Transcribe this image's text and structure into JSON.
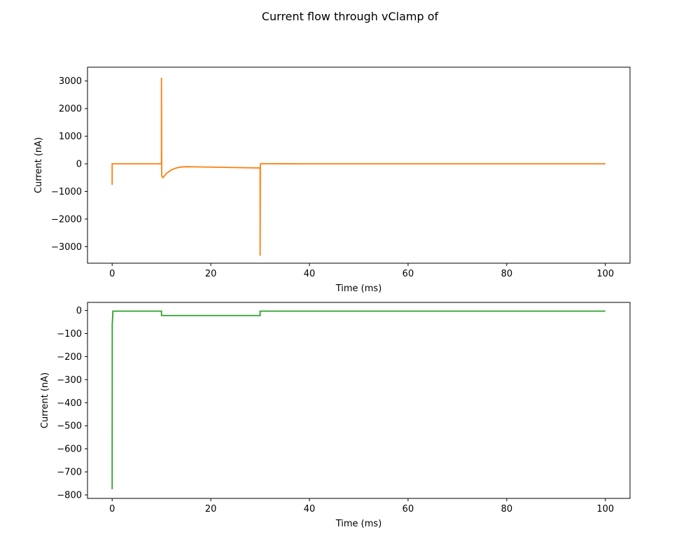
{
  "figure": {
    "title": "Current flow through vClamp of"
  },
  "chart_data": [
    {
      "type": "line",
      "xlabel": "Time (ms)",
      "ylabel": "Current (nA)",
      "xlim": [
        -5,
        105
      ],
      "ylim": [
        -3600,
        3500
      ],
      "xticks": [
        0,
        20,
        40,
        60,
        80,
        100
      ],
      "yticks": [
        -3000,
        -2000,
        -1000,
        0,
        1000,
        2000,
        3000
      ],
      "grid": false,
      "series": [
        {
          "color": "#ff7f0e",
          "x": [
            0,
            0,
            0.1,
            10,
            10,
            10.05,
            10.3,
            11,
            12,
            13,
            14,
            15,
            17,
            20,
            25,
            30,
            30,
            30.05,
            30.3,
            35,
            40,
            60,
            80,
            100
          ],
          "y": [
            -760,
            0,
            0,
            0,
            3120,
            -440,
            -500,
            -350,
            -220,
            -150,
            -115,
            -105,
            -110,
            -120,
            -135,
            -150,
            -3330,
            -10,
            5,
            2,
            0,
            0,
            0,
            0
          ]
        }
      ]
    },
    {
      "type": "line",
      "xlabel": "Time (ms)",
      "ylabel": "Current (nA)",
      "xlim": [
        -5,
        105
      ],
      "ylim": [
        -815,
        35
      ],
      "xticks": [
        0,
        20,
        40,
        60,
        80,
        100
      ],
      "yticks": [
        -800,
        -700,
        -600,
        -500,
        -400,
        -300,
        -200,
        -100,
        0
      ],
      "grid": false,
      "series": [
        {
          "color": "#2ca02c",
          "x": [
            0,
            0.02,
            0.15,
            10,
            10,
            30,
            30,
            100
          ],
          "y": [
            -775,
            -60,
            -3,
            -3,
            -22,
            -22,
            -3,
            -3
          ]
        }
      ]
    }
  ]
}
